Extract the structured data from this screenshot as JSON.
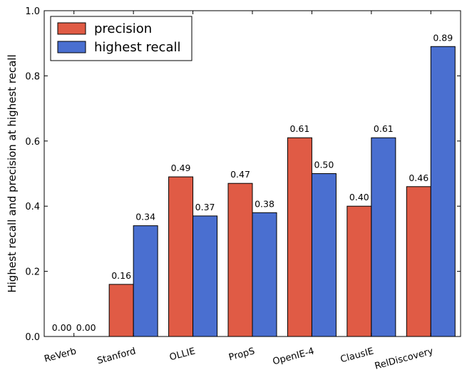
{
  "chart_data": {
    "type": "bar",
    "title": "",
    "xlabel": "",
    "ylabel": "Highest recall and precision at highest recall",
    "categories": [
      "ReVerb",
      "Stanford",
      "OLLIE",
      "PropS",
      "OpenIE-4",
      "ClausIE",
      "RelDiscovery"
    ],
    "series": [
      {
        "name": "precision",
        "color": "#e05b45",
        "values": [
          0.0,
          0.16,
          0.49,
          0.47,
          0.61,
          0.4,
          0.46
        ],
        "labels": [
          "0.00",
          "0.16",
          "0.49",
          "0.47",
          "0.61",
          "0.40",
          "0.46"
        ]
      },
      {
        "name": "highest recall",
        "color": "#4a6fd0",
        "values": [
          0.0,
          0.34,
          0.37,
          0.38,
          0.5,
          0.61,
          0.89
        ],
        "labels": [
          "0.00",
          "0.34",
          "0.37",
          "0.38",
          "0.50",
          "0.61",
          "0.89"
        ]
      }
    ],
    "ylim": [
      0,
      1.0
    ],
    "yticks": [
      "0.0",
      "0.2",
      "0.4",
      "0.6",
      "0.8",
      "1.0"
    ],
    "ytick_values": [
      0.0,
      0.2,
      0.4,
      0.6,
      0.8,
      1.0
    ],
    "grid": false,
    "legend_position": "top-left"
  }
}
